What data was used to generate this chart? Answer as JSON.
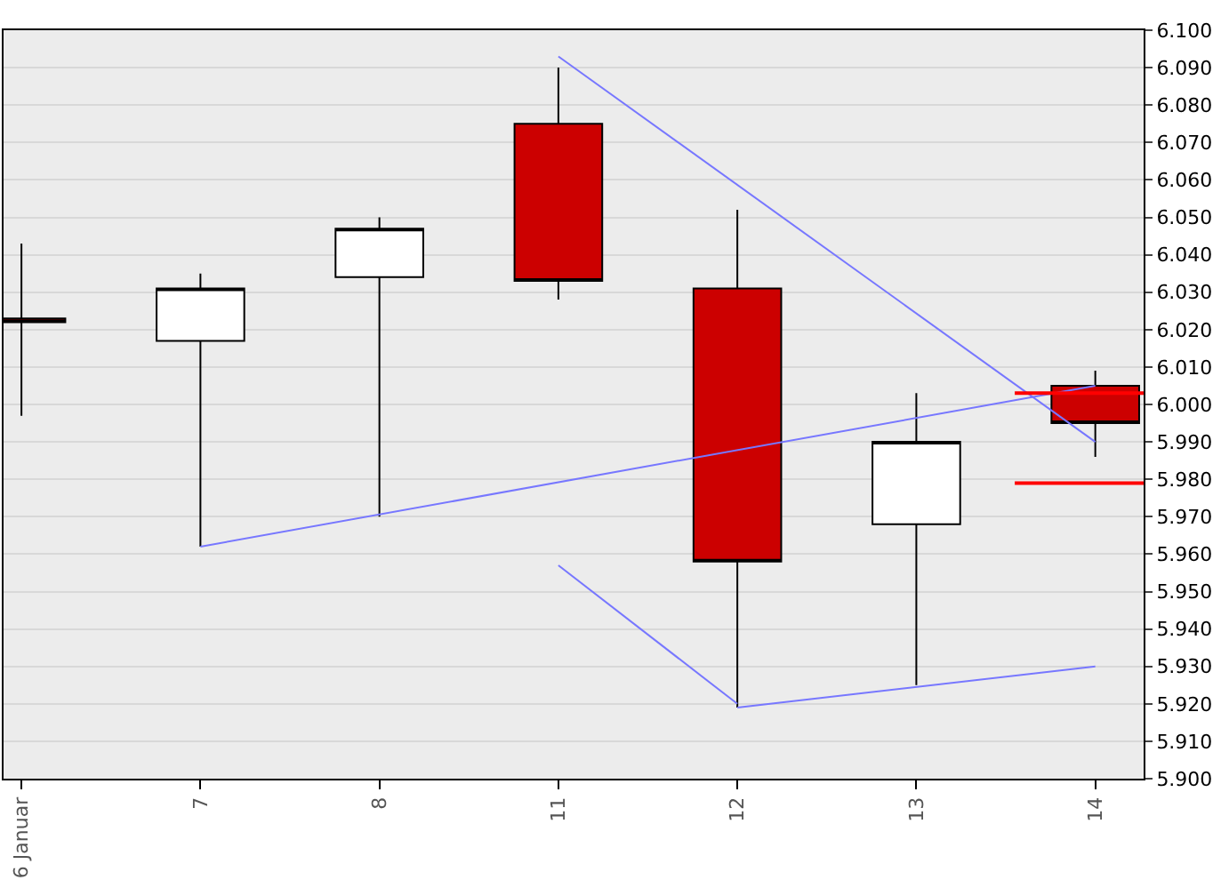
{
  "chart_data": {
    "type": "candlestick",
    "categories": [
      "6 Januar",
      "7",
      "8",
      "11",
      "12",
      "13",
      "14"
    ],
    "ohlc": [
      [
        6.023,
        6.043,
        5.997,
        6.022
      ],
      [
        6.017,
        6.035,
        5.962,
        6.031
      ],
      [
        6.034,
        6.05,
        5.97,
        6.047
      ],
      [
        6.075,
        6.09,
        6.028,
        6.033
      ],
      [
        6.031,
        6.052,
        5.919,
        5.958
      ],
      [
        5.968,
        6.003,
        5.925,
        5.99
      ],
      [
        6.005,
        6.009,
        5.986,
        5.995
      ]
    ],
    "series": [
      {
        "type": "line",
        "color": "#7777ff",
        "x": [
          "7",
          "14"
        ],
        "values": [
          5.962,
          6.005
        ]
      },
      {
        "type": "line",
        "color": "#7777ff",
        "x": [
          "11",
          "14"
        ],
        "values": [
          6.093,
          5.99
        ]
      },
      {
        "type": "line",
        "color": "#7777ff",
        "x": [
          "11",
          "12"
        ],
        "values": [
          5.957,
          5.92
        ]
      },
      {
        "type": "line",
        "color": "#7777ff",
        "x": [
          "12",
          "14"
        ],
        "values": [
          5.919,
          5.93
        ]
      }
    ],
    "ref_lines": [
      {
        "axis": "y",
        "value": 6.003,
        "color": "#ff0000"
      },
      {
        "axis": "y",
        "value": 5.979,
        "color": "#ff0000"
      }
    ],
    "ylim": [
      5.9,
      6.1
    ],
    "yticks": [
      {
        "value": 5.9,
        "label": "5.900"
      },
      {
        "value": 5.91,
        "label": "5.910"
      },
      {
        "value": 5.92,
        "label": "5.920"
      },
      {
        "value": 5.93,
        "label": "5.930"
      },
      {
        "value": 5.94,
        "label": "5.940"
      },
      {
        "value": 5.95,
        "label": "5.950"
      },
      {
        "value": 5.96,
        "label": "5.960"
      },
      {
        "value": 5.97,
        "label": "5.970"
      },
      {
        "value": 5.98,
        "label": "5.980"
      },
      {
        "value": 5.99,
        "label": "5.990"
      },
      {
        "value": 6.0,
        "label": "6.000"
      },
      {
        "value": 6.01,
        "label": "6.010"
      },
      {
        "value": 6.02,
        "label": "6.020"
      },
      {
        "value": 6.03,
        "label": "6.030"
      },
      {
        "value": 6.04,
        "label": "6.040"
      },
      {
        "value": 6.05,
        "label": "6.050"
      },
      {
        "value": 6.06,
        "label": "6.060"
      },
      {
        "value": 6.07,
        "label": "6.070"
      },
      {
        "value": 6.08,
        "label": "6.080"
      },
      {
        "value": 6.09,
        "label": "6.090"
      },
      {
        "value": 6.1,
        "label": "6.100"
      }
    ],
    "grid": "y",
    "marker": "none",
    "line_style": "solid"
  }
}
